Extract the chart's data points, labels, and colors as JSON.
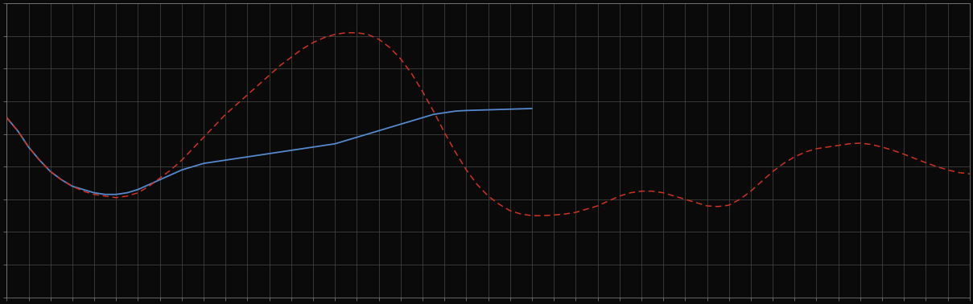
{
  "background_color": "#0a0a0a",
  "plot_bg_color": "#0a0a0a",
  "grid_color": "#4a4a4a",
  "axis_color": "#888888",
  "blue_line_color": "#5588cc",
  "red_line_color": "#cc3322",
  "fig_width": 12.09,
  "fig_height": 3.78,
  "xlim": [
    0,
    44
  ],
  "ylim": [
    0,
    9
  ],
  "n_x_gridlines": 44,
  "n_y_gridlines": 9,
  "blue_x": [
    0,
    0.5,
    1,
    1.5,
    2,
    2.5,
    3,
    3.5,
    4,
    4.5,
    5,
    5.5,
    6,
    6.5,
    7,
    7.5,
    8,
    8.5,
    9,
    9.5,
    10,
    10.5,
    11,
    11.5,
    12,
    12.5,
    13,
    13.5,
    14,
    14.5,
    15,
    15.5,
    16,
    16.5,
    17,
    17.5,
    18,
    18.5,
    19,
    19.5,
    20,
    20.5,
    21,
    21.5,
    22,
    22.5,
    23,
    23.5,
    24
  ],
  "blue_y": [
    5.5,
    5.1,
    4.6,
    4.2,
    3.85,
    3.6,
    3.4,
    3.3,
    3.2,
    3.15,
    3.15,
    3.2,
    3.3,
    3.45,
    3.6,
    3.75,
    3.9,
    4.0,
    4.1,
    4.15,
    4.2,
    4.25,
    4.3,
    4.35,
    4.4,
    4.45,
    4.5,
    4.55,
    4.6,
    4.65,
    4.7,
    4.8,
    4.9,
    5.0,
    5.1,
    5.2,
    5.3,
    5.4,
    5.5,
    5.6,
    5.65,
    5.7,
    5.72,
    5.73,
    5.74,
    5.75,
    5.76,
    5.77,
    5.78
  ],
  "red_x": [
    0,
    0.5,
    1,
    1.5,
    2,
    2.5,
    3,
    3.5,
    4,
    4.5,
    5,
    5.5,
    6,
    6.5,
    7,
    7.5,
    8,
    8.5,
    9,
    9.5,
    10,
    10.5,
    11,
    11.5,
    12,
    12.5,
    13,
    13.5,
    14,
    14.5,
    15,
    15.5,
    16,
    16.5,
    17,
    17.5,
    18,
    18.5,
    19,
    19.5,
    20,
    20.5,
    21,
    21.5,
    22,
    22.5,
    23,
    23.5,
    24,
    24.5,
    25,
    25.5,
    26,
    26.5,
    27,
    27.5,
    28,
    28.5,
    29,
    29.5,
    30,
    30.5,
    31,
    31.5,
    32,
    32.5,
    33,
    33.5,
    34,
    34.5,
    35,
    35.5,
    36,
    36.5,
    37,
    37.5,
    38,
    38.5,
    39,
    39.5,
    40,
    40.5,
    41,
    41.5,
    42,
    42.5,
    43,
    43.5,
    44
  ],
  "red_y": [
    5.5,
    5.1,
    4.6,
    4.2,
    3.85,
    3.6,
    3.4,
    3.25,
    3.15,
    3.1,
    3.05,
    3.1,
    3.2,
    3.4,
    3.65,
    3.9,
    4.2,
    4.55,
    4.9,
    5.25,
    5.6,
    5.9,
    6.2,
    6.5,
    6.8,
    7.1,
    7.35,
    7.6,
    7.8,
    7.95,
    8.05,
    8.1,
    8.1,
    8.05,
    7.9,
    7.65,
    7.3,
    6.85,
    6.3,
    5.7,
    5.05,
    4.45,
    3.9,
    3.45,
    3.1,
    2.85,
    2.65,
    2.55,
    2.5,
    2.5,
    2.52,
    2.55,
    2.6,
    2.7,
    2.8,
    2.95,
    3.1,
    3.2,
    3.25,
    3.25,
    3.2,
    3.1,
    3.0,
    2.9,
    2.8,
    2.78,
    2.82,
    3.0,
    3.25,
    3.55,
    3.85,
    4.1,
    4.3,
    4.45,
    4.55,
    4.6,
    4.65,
    4.7,
    4.72,
    4.68,
    4.6,
    4.5,
    4.38,
    4.25,
    4.12,
    4.0,
    3.9,
    3.82,
    3.78
  ]
}
